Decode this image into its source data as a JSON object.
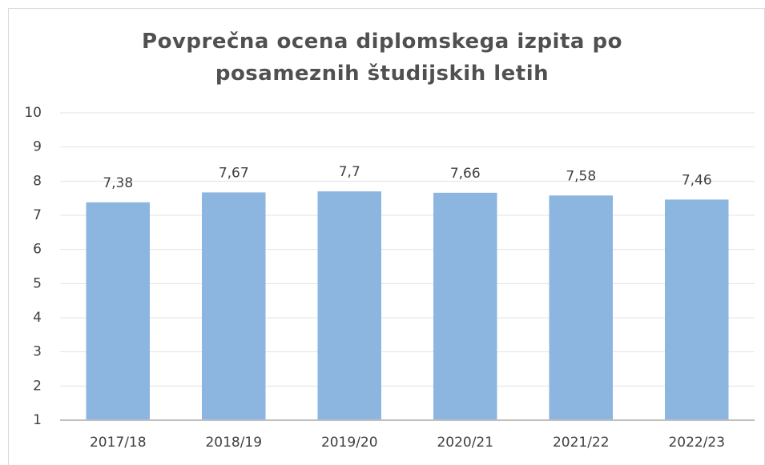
{
  "chart_data": {
    "type": "bar",
    "title": "Povprečna ocena diplomskega izpita po posameznih študijskih letih",
    "categories": [
      "2017/18",
      "2018/19",
      "2019/20",
      "2020/21",
      "2021/22",
      "2022/23"
    ],
    "values": [
      7.38,
      7.67,
      7.7,
      7.66,
      7.58,
      7.46
    ],
    "value_labels": [
      "7,38",
      "7,67",
      "7,7",
      "7,66",
      "7,58",
      "7,46"
    ],
    "color": "#8cb5df",
    "ylim": [
      1,
      10
    ],
    "yticks": [
      1,
      2,
      3,
      4,
      5,
      6,
      7,
      8,
      9,
      10
    ],
    "grid": true
  }
}
